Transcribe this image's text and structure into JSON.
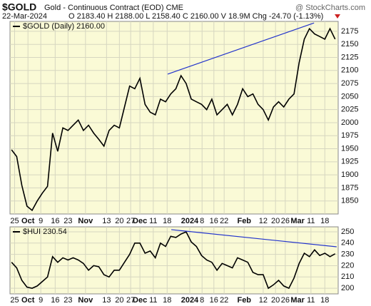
{
  "chart_data": [
    {
      "type": "line",
      "title": "$GOLD",
      "subtitle": "Gold - Continuous Contract (EOD) CME",
      "date": "22-Mar-2024",
      "ohlc_text": "O 2183.40 H 2188.00 L 2158.40 C 2160.00 V 18.9M Chg -24.70 (-1.13%)",
      "watermark": "@ StockCharts.com",
      "series": [
        {
          "name": "$GOLD (Daily) 2160.00",
          "color": "#000000",
          "values": [
            1948,
            1935,
            1880,
            1840,
            1832,
            1850,
            1865,
            1878,
            1980,
            1945,
            1990,
            1985,
            1995,
            2005,
            1985,
            1995,
            1980,
            1968,
            1955,
            1985,
            1995,
            1990,
            2030,
            2070,
            2065,
            2085,
            2035,
            2020,
            2015,
            2045,
            2040,
            2055,
            2065,
            2090,
            2075,
            2045,
            2040,
            2035,
            2025,
            2045,
            2015,
            2025,
            2035,
            2015,
            2035,
            2065,
            2050,
            2055,
            2035,
            2025,
            2005,
            2030,
            2040,
            2030,
            2045,
            2055,
            2115,
            2160,
            2180,
            2170,
            2165,
            2160,
            2180,
            2160
          ]
        }
      ],
      "trendlines": [
        {
          "x": [
            30.4,
            58.9
          ],
          "y": [
            2093,
            2191
          ],
          "color": "#2233cc"
        }
      ],
      "xlim": [
        -0.3,
        63.6
      ],
      "ylim": [
        1825,
        2194
      ],
      "yticks": [
        1850,
        1875,
        1900,
        1925,
        1950,
        1975,
        2000,
        2025,
        2050,
        2075,
        2100,
        2125,
        2150,
        2175
      ],
      "xticks": [
        {
          "value": 0.6,
          "label": "25"
        },
        {
          "value": 3.2,
          "label": "Oct"
        },
        {
          "value": 5.7,
          "label": "9"
        },
        {
          "value": 8.5,
          "label": "16"
        },
        {
          "value": 11,
          "label": "23"
        },
        {
          "value": 14.4,
          "label": "Nov"
        },
        {
          "value": 18.5,
          "label": "13"
        },
        {
          "value": 21,
          "label": "20"
        },
        {
          "value": 23.2,
          "label": "27"
        },
        {
          "value": 25,
          "label": "Dec"
        },
        {
          "value": 27.6,
          "label": "11"
        },
        {
          "value": 30.3,
          "label": "18"
        },
        {
          "value": 34.7,
          "label": "2024"
        },
        {
          "value": 37.1,
          "label": "8"
        },
        {
          "value": 39.4,
          "label": "16"
        },
        {
          "value": 41.4,
          "label": "22"
        },
        {
          "value": 45.3,
          "label": "Feb"
        },
        {
          "value": 49,
          "label": "12"
        },
        {
          "value": 51.4,
          "label": "20"
        },
        {
          "value": 53.3,
          "label": "26"
        },
        {
          "value": 55.7,
          "label": "Mar"
        },
        {
          "value": 58.3,
          "label": "11"
        },
        {
          "value": 61,
          "label": "18"
        }
      ],
      "grid": true
    },
    {
      "type": "line",
      "series": [
        {
          "name": "$HUI 230.54",
          "color": "#000000",
          "values": [
            223,
            218,
            207,
            201,
            200,
            202,
            206,
            210,
            228,
            223,
            227,
            225,
            227,
            225,
            222,
            216,
            220,
            219,
            212,
            210,
            216,
            216,
            223,
            230,
            240,
            240,
            231,
            233,
            227,
            240,
            237,
            246,
            245,
            248,
            250,
            241,
            237,
            229,
            225,
            223,
            216,
            222,
            220,
            218,
            227,
            225,
            223,
            214,
            212,
            212,
            200,
            203,
            207,
            202,
            200,
            209,
            222,
            231,
            228,
            234,
            229,
            231,
            228,
            230.54
          ]
        }
      ],
      "trendlines": [
        {
          "x": [
            31.1,
            63.3
          ],
          "y": [
            251.9,
            236.7
          ],
          "color": "#2233cc"
        }
      ],
      "xlim": [
        -0.3,
        63.6
      ],
      "ylim": [
        195,
        254.4
      ],
      "yticks": [
        200,
        210,
        220,
        230,
        240,
        250
      ],
      "xticks": [
        {
          "value": 0.6,
          "label": "25"
        },
        {
          "value": 3.2,
          "label": "Oct"
        },
        {
          "value": 5.7,
          "label": "9"
        },
        {
          "value": 8.5,
          "label": "16"
        },
        {
          "value": 11,
          "label": "23"
        },
        {
          "value": 14.4,
          "label": "Nov"
        },
        {
          "value": 18.5,
          "label": "13"
        },
        {
          "value": 21,
          "label": "20"
        },
        {
          "value": 23.2,
          "label": "27"
        },
        {
          "value": 25,
          "label": "Dec"
        },
        {
          "value": 27.6,
          "label": "11"
        },
        {
          "value": 30.3,
          "label": "18"
        },
        {
          "value": 34.7,
          "label": "2024"
        },
        {
          "value": 37.1,
          "label": "8"
        },
        {
          "value": 39.4,
          "label": "16"
        },
        {
          "value": 41.4,
          "label": "22"
        },
        {
          "value": 45.3,
          "label": "Feb"
        },
        {
          "value": 49,
          "label": "12"
        },
        {
          "value": 51.4,
          "label": "20"
        },
        {
          "value": 53.3,
          "label": "26"
        },
        {
          "value": 55.7,
          "label": "Mar"
        },
        {
          "value": 58.3,
          "label": "11"
        },
        {
          "value": 61,
          "label": "18"
        }
      ],
      "grid": true
    }
  ]
}
